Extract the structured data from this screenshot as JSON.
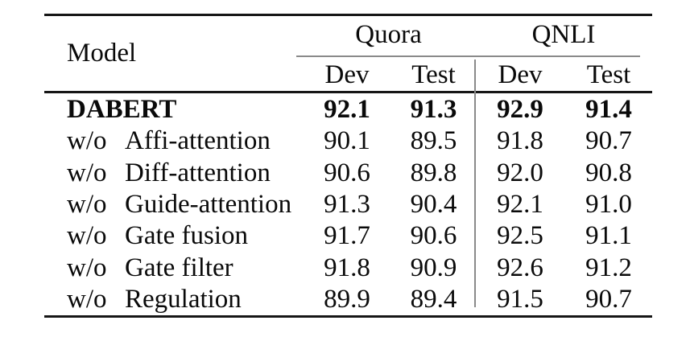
{
  "colors": {
    "background": "#ffffff",
    "text": "#0a0a0a",
    "rule": "#161616",
    "thin-rule": "#8a8a8a"
  },
  "table": {
    "model_header": "Model",
    "groups": [
      {
        "label": "Quora",
        "subcolumns": [
          "Dev",
          "Test"
        ]
      },
      {
        "label": "QNLI",
        "subcolumns": [
          "Dev",
          "Test"
        ]
      }
    ],
    "rows": [
      {
        "prefix": "",
        "name": "DABERT",
        "bold": true,
        "values": [
          "92.1",
          "91.3",
          "92.9",
          "91.4"
        ]
      },
      {
        "prefix": "w/o",
        "name": "Affi-attention",
        "bold": false,
        "values": [
          "90.1",
          "89.5",
          "91.8",
          "90.7"
        ]
      },
      {
        "prefix": "w/o",
        "name": "Diff-attention",
        "bold": false,
        "values": [
          "90.6",
          "89.8",
          "92.0",
          "90.8"
        ]
      },
      {
        "prefix": "w/o",
        "name": "Guide-attention",
        "bold": false,
        "values": [
          "91.3",
          "90.4",
          "92.1",
          "91.0"
        ]
      },
      {
        "prefix": "w/o",
        "name": "Gate fusion",
        "bold": false,
        "values": [
          "91.7",
          "90.6",
          "92.5",
          "91.1"
        ]
      },
      {
        "prefix": "w/o",
        "name": "Gate filter",
        "bold": false,
        "values": [
          "91.8",
          "90.9",
          "92.6",
          "91.2"
        ]
      },
      {
        "prefix": "w/o",
        "name": "Regulation",
        "bold": false,
        "values": [
          "89.9",
          "89.4",
          "91.5",
          "90.7"
        ]
      }
    ]
  }
}
